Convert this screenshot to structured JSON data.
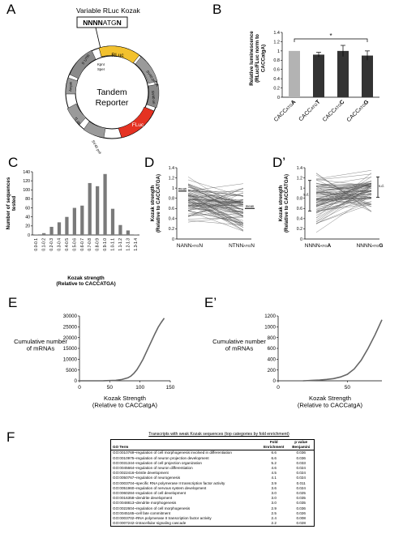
{
  "panels": {
    "A": "A",
    "B": "B",
    "C": "C",
    "D": "D",
    "D2": "D’",
    "E": "E",
    "E2": "E’",
    "F": "F"
  },
  "panel_a": {
    "variable_label": "Variable RLuc Kozak",
    "box_prefix": "NNNN",
    "box_mid": "ATG",
    "box_suffix": "N",
    "center_line1": "Tandem",
    "center_line2": "Reporter",
    "segments": {
      "rluc": "RLuc",
      "fluc": "FLuc",
      "sv40_a": "SV40 polyA",
      "sv40_b": "SV40 polyA",
      "utr": "5' UTR",
      "ampr": "AmpR",
      "sv40_ori": "SV40 ori",
      "f1": "f1 ori",
      "kozak_site": "KpnI",
      "spe": "SpeI"
    }
  },
  "chart_data": [
    {
      "panel": "B",
      "type": "bar",
      "ylabel": "Relative luminescence\n(RLuc/FLuc norm to\nCACCatgA)",
      "ylim": [
        0,
        1.4
      ],
      "yticks": [
        "0",
        "0.2",
        "0.4",
        "0.6",
        "0.8",
        "1",
        "1.2",
        "1.4"
      ],
      "categories": [
        {
          "pre": "CACC",
          "mid": "ATG",
          "post": "A"
        },
        {
          "pre": "CACC",
          "mid": "ATG",
          "post": "T"
        },
        {
          "pre": "CACC",
          "mid": "ATG",
          "post": "C"
        },
        {
          "pre": "CACC",
          "mid": "ATG",
          "post": "G"
        }
      ],
      "values": [
        1.0,
        0.92,
        1.0,
        0.9
      ],
      "errors": [
        0.0,
        0.05,
        0.12,
        0.1
      ],
      "colors": [
        "#b3b3b3",
        "#333333",
        "#333333",
        "#333333"
      ],
      "annotation": "*"
    },
    {
      "panel": "C",
      "type": "bar",
      "ylabel": "Number of sequences\ntested",
      "xlabel": "Kozak strength\n(Relative to CACCATGA)",
      "ylim": [
        0,
        140
      ],
      "yticks": [
        "0",
        "20",
        "40",
        "60",
        "80",
        "100",
        "120",
        "140"
      ],
      "categories": [
        "0.0-0.1",
        "0.1-0.2",
        "0.2-0.3",
        "0.3-0.4",
        "0.4-0.5",
        "0.5-0.6",
        "0.6-0.7",
        "0.7-0.8",
        "0.8-0.9",
        "0.9-1.0",
        "1.0-1.1",
        "1.1-1.2",
        "1.2-1.3",
        "1.3-1.4"
      ],
      "values": [
        1,
        4,
        18,
        28,
        40,
        60,
        65,
        115,
        108,
        135,
        58,
        22,
        10,
        1
      ],
      "color": "#7a7a7a"
    },
    {
      "panel": "D",
      "type": "line",
      "ylabel": "Kozak strength\n(Relative to CACCATGA)",
      "ylim": [
        0,
        1.4
      ],
      "yticks": [
        "0",
        "0.2",
        "0.4",
        "0.6",
        "0.8",
        "1",
        "1.2",
        "1.4"
      ],
      "categories": [
        {
          "pre": "NANN",
          "mid": "ATG",
          "post": "N"
        },
        {
          "pre": "NTNN",
          "mid": "ATG",
          "post": "N"
        }
      ],
      "mean_label": "mean",
      "means": [
        0.94,
        0.6
      ],
      "left_range": [
        0.35,
        1.25
      ],
      "right_range": [
        0.15,
        1.05
      ]
    },
    {
      "panel": "D2",
      "type": "line",
      "ylabel": "Kozak strength\n(Relative to CACCATGA)",
      "ylim": [
        0,
        1.4
      ],
      "yticks": [
        "0",
        "0.2",
        "0.4",
        "0.6",
        "0.8",
        "1",
        "1.2",
        "1.4"
      ],
      "categories": [
        {
          "pre": "NNNN",
          "mid": "ATG",
          "post": "A"
        },
        {
          "pre": "NNNN",
          "mid": "ATG",
          "post": "G"
        }
      ],
      "sd_label": "s.d.",
      "left_range": [
        0.2,
        1.3
      ],
      "right_range": [
        0.45,
        1.35
      ]
    },
    {
      "panel": "E",
      "type": "line",
      "ylabel": "Cumulative number\nof mRNAs",
      "xlabel": "Kozak Strength\n(Relative to CACCatgA)",
      "xlim": [
        0,
        150
      ],
      "ylim": [
        0,
        30000
      ],
      "xticks": [
        "0",
        "50",
        "100",
        "150"
      ],
      "yticks": [
        "0",
        "5000",
        "10000",
        "15000",
        "20000",
        "25000",
        "30000"
      ],
      "x": [
        0,
        40,
        60,
        70,
        80,
        85,
        90,
        95,
        100,
        105,
        110,
        115,
        120,
        125,
        130,
        135,
        140
      ],
      "y": [
        0,
        30,
        200,
        600,
        1400,
        2200,
        3500,
        5200,
        7500,
        10000,
        13000,
        16000,
        19000,
        22000,
        24800,
        27000,
        29000
      ],
      "color": "#666666"
    },
    {
      "panel": "E2",
      "type": "line",
      "ylabel": "Cumulative number\nof mRNAs",
      "xlabel": "Kozak Strength\n(Relative to CACCatgA)",
      "xlim": [
        0,
        75
      ],
      "ylim": [
        0,
        1200
      ],
      "xticks": [
        "0",
        "50"
      ],
      "yticks": [
        "0",
        "200",
        "400",
        "600",
        "800",
        "1000",
        "1200"
      ],
      "x": [
        18,
        25,
        30,
        35,
        40,
        45,
        50,
        55,
        60,
        65,
        70,
        75
      ],
      "y": [
        0,
        8,
        15,
        25,
        40,
        70,
        120,
        220,
        380,
        600,
        850,
        1130
      ],
      "color": "#666666"
    }
  ],
  "table_f": {
    "title": "Transcripts with weak Kozak sequences (top categories by fold enrichment)",
    "headers": {
      "term": "GO Term",
      "fold": "Fold\nEnrichment",
      "p": "p value\nBenjamini"
    },
    "rows": [
      {
        "term": "GO:0010769~regulation of cell morphogenesis involved in differentiation",
        "fold": "6.6",
        "p": "0.036"
      },
      {
        "term": "GO:0010975~regulation of neuron projection development",
        "fold": "6.6",
        "p": "0.036"
      },
      {
        "term": "GO:0031344~regulation of cell projection organization",
        "fold": "5.2",
        "p": "0.033"
      },
      {
        "term": "GO:0045664~regulation of neuron differentiation",
        "fold": "4.6",
        "p": "0.024"
      },
      {
        "term": "GO:0022416~bristle development",
        "fold": "4.5",
        "p": "0.024"
      },
      {
        "term": "GO:0050767~regulation of neurogenesis",
        "fold": "4.1",
        "p": "0.024"
      },
      {
        "term": "GO:0003704~specific RNA polymerase II transcription factor activity",
        "fold": "3.9",
        "p": "0.011"
      },
      {
        "term": "GO:0051960~regulation of nervous system development",
        "fold": "3.6",
        "p": "0.024"
      },
      {
        "term": "GO:0060284~regulation of cell development",
        "fold": "3.0",
        "p": "0.025"
      },
      {
        "term": "GO:0016358~dendrite development",
        "fold": "3.0",
        "p": "0.035"
      },
      {
        "term": "GO:0048813~dendrite morphogenesis",
        "fold": "3.0",
        "p": "0.035"
      },
      {
        "term": "GO:0022604~regulation of cell morphogenesis",
        "fold": "2.9",
        "p": "0.036"
      },
      {
        "term": "GO:0045165~cell fate commitment",
        "fold": "2.5",
        "p": "0.026"
      },
      {
        "term": "GO:0003702~RNA polymerase II transcription factor activity",
        "fold": "2.4",
        "p": "0.008"
      },
      {
        "term": "GO:0007242~intracellular signaling cascade",
        "fold": "2.2",
        "p": "0.028"
      }
    ]
  }
}
